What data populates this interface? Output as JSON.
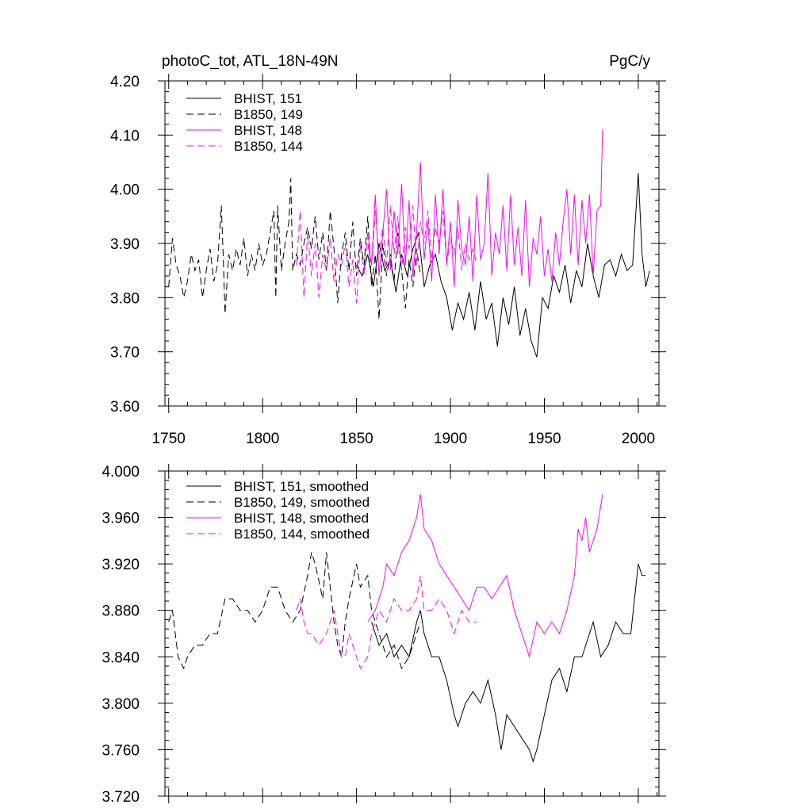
{
  "page": {
    "title_left": "photoC_tot, ATL_18N-49N",
    "title_right": "PgC/y"
  },
  "colors": {
    "black": "#000000",
    "magenta": "#ff00ff"
  },
  "chart_data": [
    {
      "type": "line",
      "title": "photoC_tot, ATL_18N-49N",
      "units": "PgC/y",
      "xlim": [
        1748,
        2011
      ],
      "ylim": [
        3.6,
        4.2
      ],
      "x_ticks": [
        1750,
        1800,
        1850,
        1900,
        1950,
        2000
      ],
      "x_tick_labels": [
        "1750",
        "1800",
        "1850",
        "1900",
        "1950",
        "2000"
      ],
      "y_ticks": [
        3.6,
        3.7,
        3.8,
        3.9,
        4.0,
        4.1,
        4.2
      ],
      "y_tick_labels": [
        "3.60",
        "3.70",
        "3.80",
        "3.90",
        "4.00",
        "4.10",
        "4.20"
      ],
      "legend_position": "top-left",
      "series": [
        {
          "name": "BHIST, 151",
          "color": "#000000",
          "dash": "solid",
          "x": [
            1850,
            1853,
            1856,
            1859,
            1862,
            1865,
            1868,
            1871,
            1874,
            1877,
            1880,
            1883,
            1886,
            1889,
            1892,
            1895,
            1898,
            1901,
            1904,
            1907,
            1910,
            1913,
            1916,
            1919,
            1922,
            1925,
            1928,
            1931,
            1934,
            1937,
            1940,
            1943,
            1946,
            1949,
            1952,
            1955,
            1958,
            1961,
            1964,
            1967,
            1970,
            1973,
            1976,
            1979,
            1982,
            1985,
            1988,
            1991,
            1994,
            1997,
            2000,
            2002,
            2004,
            2006
          ],
          "values": [
            3.86,
            3.84,
            3.88,
            3.82,
            3.9,
            3.85,
            3.87,
            3.81,
            3.88,
            3.84,
            3.89,
            3.92,
            3.82,
            3.86,
            3.88,
            3.83,
            3.8,
            3.74,
            3.79,
            3.76,
            3.81,
            3.74,
            3.83,
            3.76,
            3.79,
            3.71,
            3.8,
            3.75,
            3.82,
            3.73,
            3.78,
            3.72,
            3.69,
            3.8,
            3.78,
            3.84,
            3.81,
            3.86,
            3.79,
            3.85,
            3.82,
            3.9,
            3.84,
            3.8,
            3.86,
            3.87,
            3.84,
            3.88,
            3.85,
            3.86,
            4.03,
            3.88,
            3.82,
            3.85
          ]
        },
        {
          "name": "B1850, 149",
          "color": "#000000",
          "dash": "dashed",
          "x": [
            1750,
            1752,
            1754,
            1756,
            1758,
            1760,
            1762,
            1764,
            1766,
            1768,
            1770,
            1772,
            1774,
            1776,
            1778,
            1779,
            1780,
            1782,
            1784,
            1786,
            1788,
            1790,
            1792,
            1794,
            1796,
            1798,
            1800,
            1802,
            1804,
            1806,
            1807,
            1808,
            1810,
            1812,
            1814,
            1815,
            1816,
            1818,
            1820,
            1822,
            1824,
            1826,
            1828,
            1830,
            1832,
            1834,
            1836,
            1838,
            1840,
            1842,
            1844,
            1846,
            1848,
            1850,
            1852,
            1854,
            1856,
            1858,
            1860,
            1862,
            1864,
            1866,
            1868,
            1870,
            1872,
            1874,
            1876,
            1878,
            1880,
            1882,
            1884
          ],
          "values": [
            3.82,
            3.91,
            3.86,
            3.84,
            3.8,
            3.83,
            3.88,
            3.85,
            3.87,
            3.8,
            3.85,
            3.89,
            3.83,
            3.86,
            3.97,
            3.88,
            3.77,
            3.88,
            3.85,
            3.89,
            3.86,
            3.91,
            3.84,
            3.88,
            3.85,
            3.9,
            3.86,
            3.88,
            3.92,
            3.96,
            3.8,
            3.97,
            3.85,
            3.9,
            3.94,
            4.02,
            3.85,
            3.88,
            3.86,
            3.9,
            3.93,
            3.89,
            3.95,
            3.87,
            3.92,
            3.85,
            3.96,
            3.89,
            3.79,
            3.88,
            3.92,
            3.85,
            3.94,
            3.84,
            3.91,
            3.86,
            3.95,
            3.82,
            3.88,
            3.76,
            3.9,
            3.84,
            3.88,
            3.83,
            3.92,
            3.85,
            3.78,
            3.87,
            3.82,
            3.89,
            3.84
          ]
        },
        {
          "name": "BHIST, 148",
          "color": "#ff00ff",
          "dash": "solid",
          "x": [
            1856,
            1858,
            1860,
            1862,
            1864,
            1866,
            1868,
            1870,
            1872,
            1874,
            1876,
            1878,
            1880,
            1882,
            1884,
            1886,
            1888,
            1890,
            1892,
            1894,
            1896,
            1898,
            1900,
            1902,
            1904,
            1906,
            1908,
            1910,
            1912,
            1914,
            1916,
            1918,
            1920,
            1922,
            1924,
            1926,
            1928,
            1930,
            1932,
            1934,
            1936,
            1938,
            1940,
            1942,
            1944,
            1946,
            1948,
            1950,
            1952,
            1954,
            1956,
            1958,
            1960,
            1962,
            1964,
            1966,
            1968,
            1970,
            1972,
            1974,
            1976,
            1978,
            1980,
            1981
          ],
          "values": [
            3.9,
            3.86,
            3.99,
            3.84,
            3.92,
            4.0,
            3.85,
            3.96,
            3.88,
            4.01,
            3.86,
            3.98,
            3.84,
            3.92,
            4.05,
            3.87,
            3.94,
            3.83,
            3.99,
            3.88,
            4.0,
            3.86,
            3.94,
            3.82,
            3.98,
            3.89,
            3.86,
            3.95,
            3.83,
            3.99,
            3.87,
            3.9,
            4.03,
            3.84,
            3.92,
            3.88,
            3.97,
            3.85,
            3.99,
            3.86,
            3.93,
            3.84,
            3.98,
            3.82,
            3.91,
            3.88,
            3.95,
            3.84,
            3.89,
            3.83,
            3.92,
            3.86,
            3.94,
            4.0,
            3.88,
            3.99,
            3.86,
            3.98,
            3.9,
            3.99,
            3.84,
            3.96,
            3.97,
            4.11
          ]
        },
        {
          "name": "B1850, 144",
          "color": "#ff00ff",
          "dash": "dashed",
          "x": [
            1818,
            1820,
            1822,
            1824,
            1826,
            1828,
            1830,
            1832,
            1834,
            1836,
            1838,
            1840,
            1842,
            1844,
            1846,
            1848,
            1850,
            1852,
            1854,
            1856,
            1858,
            1860,
            1862,
            1864,
            1866,
            1868,
            1870,
            1872,
            1874,
            1876,
            1878,
            1880,
            1882,
            1884,
            1886,
            1888,
            1890,
            1892,
            1894,
            1896,
            1898,
            1900,
            1902,
            1904,
            1906,
            1908,
            1910,
            1912,
            1914
          ],
          "values": [
            3.86,
            3.96,
            3.8,
            3.92,
            3.84,
            3.9,
            3.8,
            3.88,
            3.85,
            3.91,
            3.83,
            3.88,
            3.86,
            3.9,
            3.82,
            3.87,
            3.79,
            3.9,
            3.84,
            3.92,
            3.86,
            3.96,
            3.88,
            3.93,
            3.86,
            3.97,
            3.88,
            3.95,
            3.85,
            3.93,
            3.89,
            3.97,
            3.86,
            3.94,
            3.9,
            3.96,
            3.87,
            3.93,
            3.9,
            3.96,
            3.86,
            3.91,
            3.88,
            3.93,
            3.85,
            3.9,
            3.87,
            3.89,
            3.86
          ]
        }
      ]
    },
    {
      "type": "line",
      "title": "",
      "xlim": [
        1748,
        2011
      ],
      "ylim": [
        3.72,
        4.0
      ],
      "x_ticks": [
        1750,
        1800,
        1850,
        1900,
        1950,
        2000
      ],
      "x_tick_labels": [],
      "y_ticks": [
        3.72,
        3.76,
        3.8,
        3.84,
        3.88,
        3.92,
        3.96,
        4.0
      ],
      "y_tick_labels": [
        "3.720",
        "3.760",
        "3.800",
        "3.840",
        "3.880",
        "3.920",
        "3.960",
        "4.000"
      ],
      "legend_position": "top-left",
      "series": [
        {
          "name": "BHIST, 151, smoothed",
          "color": "#000000",
          "dash": "solid",
          "x": [
            1858,
            1862,
            1866,
            1870,
            1874,
            1878,
            1882,
            1884,
            1886,
            1890,
            1894,
            1898,
            1902,
            1904,
            1908,
            1912,
            1916,
            1920,
            1924,
            1927,
            1930,
            1934,
            1938,
            1942,
            1944,
            1946,
            1950,
            1954,
            1958,
            1962,
            1966,
            1970,
            1974,
            1976,
            1980,
            1984,
            1988,
            1992,
            1996,
            2000,
            2002,
            2004
          ],
          "values": [
            3.87,
            3.85,
            3.86,
            3.84,
            3.85,
            3.84,
            3.87,
            3.88,
            3.86,
            3.84,
            3.84,
            3.82,
            3.79,
            3.78,
            3.8,
            3.81,
            3.8,
            3.82,
            3.79,
            3.76,
            3.79,
            3.78,
            3.77,
            3.76,
            3.75,
            3.76,
            3.79,
            3.82,
            3.83,
            3.81,
            3.84,
            3.84,
            3.86,
            3.87,
            3.84,
            3.85,
            3.87,
            3.86,
            3.86,
            3.92,
            3.91,
            3.91
          ]
        },
        {
          "name": "B1850, 149, smoothed",
          "color": "#000000",
          "dash": "dashed",
          "x": [
            1750,
            1752,
            1755,
            1758,
            1760,
            1764,
            1768,
            1772,
            1776,
            1780,
            1784,
            1788,
            1792,
            1796,
            1800,
            1804,
            1808,
            1812,
            1816,
            1820,
            1824,
            1826,
            1828,
            1832,
            1834,
            1836,
            1838,
            1840,
            1842,
            1844,
            1846,
            1850,
            1852,
            1856,
            1858,
            1862,
            1866,
            1870,
            1874,
            1878,
            1882,
            1884
          ],
          "values": [
            3.87,
            3.88,
            3.84,
            3.83,
            3.84,
            3.85,
            3.85,
            3.86,
            3.86,
            3.89,
            3.89,
            3.88,
            3.88,
            3.87,
            3.88,
            3.9,
            3.9,
            3.88,
            3.87,
            3.88,
            3.91,
            3.93,
            3.92,
            3.89,
            3.93,
            3.9,
            3.87,
            3.85,
            3.84,
            3.87,
            3.89,
            3.92,
            3.9,
            3.91,
            3.88,
            3.86,
            3.84,
            3.85,
            3.83,
            3.84,
            3.86,
            3.87
          ]
        },
        {
          "name": "BHIST, 148, smoothed",
          "color": "#ff00ff",
          "dash": "solid",
          "x": [
            1856,
            1860,
            1864,
            1866,
            1870,
            1874,
            1878,
            1882,
            1884,
            1886,
            1890,
            1894,
            1898,
            1902,
            1906,
            1910,
            1914,
            1918,
            1922,
            1926,
            1930,
            1934,
            1938,
            1942,
            1946,
            1950,
            1954,
            1958,
            1962,
            1966,
            1968,
            1970,
            1972,
            1974,
            1976,
            1978,
            1980,
            1981
          ],
          "values": [
            3.87,
            3.88,
            3.9,
            3.92,
            3.91,
            3.93,
            3.94,
            3.96,
            3.98,
            3.95,
            3.94,
            3.92,
            3.91,
            3.9,
            3.89,
            3.88,
            3.9,
            3.9,
            3.89,
            3.9,
            3.91,
            3.88,
            3.86,
            3.84,
            3.87,
            3.86,
            3.87,
            3.86,
            3.88,
            3.91,
            3.95,
            3.94,
            3.96,
            3.93,
            3.94,
            3.95,
            3.97,
            3.98
          ]
        },
        {
          "name": "B1850, 144, smoothed",
          "color": "#ff00ff",
          "dash": "dashed",
          "x": [
            1818,
            1820,
            1822,
            1824,
            1826,
            1830,
            1834,
            1838,
            1842,
            1844,
            1846,
            1850,
            1852,
            1856,
            1858,
            1862,
            1866,
            1870,
            1874,
            1878,
            1882,
            1884,
            1886,
            1890,
            1894,
            1898,
            1902,
            1906,
            1910,
            1914
          ],
          "values": [
            3.88,
            3.89,
            3.87,
            3.86,
            3.86,
            3.85,
            3.86,
            3.88,
            3.84,
            3.84,
            3.86,
            3.84,
            3.83,
            3.84,
            3.86,
            3.88,
            3.87,
            3.89,
            3.88,
            3.88,
            3.89,
            3.91,
            3.88,
            3.88,
            3.89,
            3.88,
            3.86,
            3.88,
            3.87,
            3.87
          ]
        }
      ]
    }
  ]
}
